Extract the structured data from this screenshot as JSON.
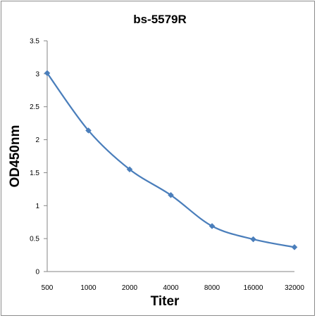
{
  "chart_data": {
    "type": "line",
    "title": "bs-5579R",
    "xlabel": "Titer",
    "ylabel": "OD450nm",
    "categories": [
      "500",
      "1000",
      "2000",
      "4000",
      "8000",
      "16000",
      "32000"
    ],
    "series": [
      {
        "values": [
          3.01,
          2.14,
          1.55,
          1.16,
          0.69,
          0.49,
          0.37
        ],
        "color": "#4a7ebb",
        "marker": "diamond",
        "smooth": true
      }
    ],
    "yticks": [
      "0",
      "0.5",
      "1",
      "1.5",
      "2",
      "2.5",
      "3",
      "3.5"
    ],
    "ylim": [
      0,
      3.5
    ],
    "grid": false,
    "legend": "none"
  }
}
